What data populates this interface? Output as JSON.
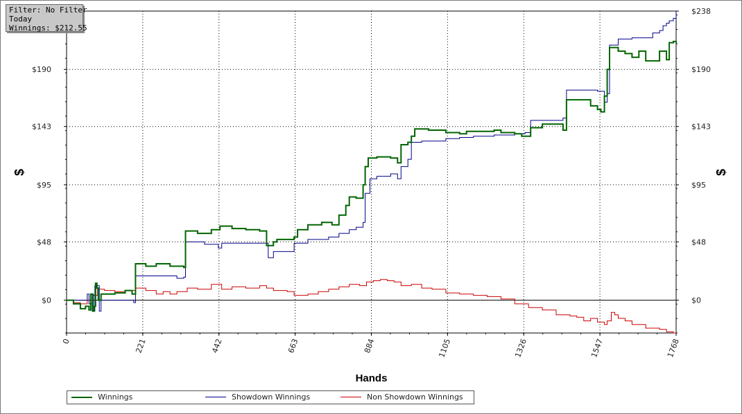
{
  "filter_box": {
    "line1": "Filter: No Filter",
    "line2": "Today",
    "line3": "Winnings: $212.55"
  },
  "chart_data": {
    "type": "line",
    "xlabel": "Hands",
    "ylabel": "$",
    "xlim": [
      0,
      1768
    ],
    "ylim": [
      -27,
      238
    ],
    "x_ticks": [
      "0",
      "221",
      "442",
      "663",
      "884",
      "1105",
      "1326",
      "1547",
      "1768"
    ],
    "y_ticks": [
      "$0",
      "$48",
      "$95",
      "$143",
      "$190",
      "$238"
    ],
    "y_tick_values": [
      0,
      48,
      95,
      143,
      190,
      238
    ],
    "grid": true,
    "legend_position": "bottom-left",
    "series": [
      {
        "name": "Winnings",
        "color": "#006400",
        "points": [
          [
            0,
            0
          ],
          [
            20,
            -3
          ],
          [
            40,
            -7
          ],
          [
            55,
            -5
          ],
          [
            65,
            -8
          ],
          [
            70,
            5
          ],
          [
            75,
            -9
          ],
          [
            80,
            -5
          ],
          [
            84,
            14
          ],
          [
            88,
            10
          ],
          [
            92,
            0
          ],
          [
            100,
            5
          ],
          [
            140,
            6
          ],
          [
            170,
            8
          ],
          [
            190,
            5
          ],
          [
            200,
            30
          ],
          [
            230,
            28
          ],
          [
            260,
            30
          ],
          [
            300,
            28
          ],
          [
            340,
            27
          ],
          [
            345,
            57
          ],
          [
            380,
            55
          ],
          [
            420,
            58
          ],
          [
            445,
            61
          ],
          [
            480,
            59
          ],
          [
            520,
            58
          ],
          [
            560,
            57
          ],
          [
            580,
            45
          ],
          [
            600,
            48
          ],
          [
            610,
            50
          ],
          [
            640,
            50
          ],
          [
            660,
            52
          ],
          [
            670,
            58
          ],
          [
            700,
            62
          ],
          [
            740,
            64
          ],
          [
            770,
            62
          ],
          [
            790,
            70
          ],
          [
            810,
            78
          ],
          [
            820,
            85
          ],
          [
            840,
            84
          ],
          [
            860,
            95
          ],
          [
            866,
            110
          ],
          [
            875,
            117
          ],
          [
            900,
            118
          ],
          [
            940,
            117
          ],
          [
            960,
            113
          ],
          [
            970,
            128
          ],
          [
            990,
            130
          ],
          [
            1000,
            135
          ],
          [
            1010,
            141
          ],
          [
            1050,
            140
          ],
          [
            1100,
            138
          ],
          [
            1140,
            137
          ],
          [
            1160,
            139
          ],
          [
            1200,
            139
          ],
          [
            1240,
            140
          ],
          [
            1260,
            138
          ],
          [
            1300,
            137
          ],
          [
            1320,
            135
          ],
          [
            1346,
            142
          ],
          [
            1380,
            145
          ],
          [
            1400,
            145
          ],
          [
            1440,
            140
          ],
          [
            1450,
            165
          ],
          [
            1480,
            165
          ],
          [
            1500,
            165
          ],
          [
            1520,
            160
          ],
          [
            1540,
            157
          ],
          [
            1550,
            155
          ],
          [
            1560,
            168
          ],
          [
            1568,
            190
          ],
          [
            1575,
            208
          ],
          [
            1600,
            205
          ],
          [
            1620,
            203
          ],
          [
            1640,
            200
          ],
          [
            1660,
            205
          ],
          [
            1680,
            197
          ],
          [
            1700,
            197
          ],
          [
            1720,
            205
          ],
          [
            1740,
            198
          ],
          [
            1748,
            212
          ],
          [
            1760,
            213
          ],
          [
            1768,
            212
          ]
        ]
      },
      {
        "name": "Showdown Winnings",
        "color": "#00008b",
        "points": [
          [
            0,
            0
          ],
          [
            55,
            0
          ],
          [
            60,
            5
          ],
          [
            65,
            -3
          ],
          [
            75,
            5
          ],
          [
            78,
            -9
          ],
          [
            82,
            12
          ],
          [
            88,
            12
          ],
          [
            95,
            -9
          ],
          [
            100,
            0
          ],
          [
            190,
            0
          ],
          [
            195,
            -2
          ],
          [
            200,
            20
          ],
          [
            320,
            18
          ],
          [
            340,
            19
          ],
          [
            345,
            48
          ],
          [
            400,
            46
          ],
          [
            440,
            43
          ],
          [
            450,
            47
          ],
          [
            520,
            47
          ],
          [
            580,
            47
          ],
          [
            585,
            35
          ],
          [
            600,
            40
          ],
          [
            640,
            40
          ],
          [
            660,
            47
          ],
          [
            700,
            50
          ],
          [
            760,
            52
          ],
          [
            790,
            55
          ],
          [
            820,
            58
          ],
          [
            840,
            60
          ],
          [
            860,
            64
          ],
          [
            866,
            88
          ],
          [
            880,
            100
          ],
          [
            900,
            102
          ],
          [
            940,
            104
          ],
          [
            960,
            100
          ],
          [
            970,
            110
          ],
          [
            990,
            116
          ],
          [
            1000,
            130
          ],
          [
            1030,
            131
          ],
          [
            1100,
            133
          ],
          [
            1140,
            134
          ],
          [
            1180,
            135
          ],
          [
            1240,
            136
          ],
          [
            1300,
            137
          ],
          [
            1330,
            138
          ],
          [
            1346,
            148
          ],
          [
            1400,
            148
          ],
          [
            1440,
            150
          ],
          [
            1450,
            173
          ],
          [
            1480,
            173
          ],
          [
            1540,
            172
          ],
          [
            1560,
            163
          ],
          [
            1568,
            170
          ],
          [
            1575,
            210
          ],
          [
            1600,
            215
          ],
          [
            1640,
            216
          ],
          [
            1700,
            220
          ],
          [
            1720,
            222
          ],
          [
            1730,
            226
          ],
          [
            1740,
            228
          ],
          [
            1748,
            230
          ],
          [
            1760,
            232
          ],
          [
            1768,
            238
          ]
        ]
      },
      {
        "name": "Non Showdown Winnings",
        "color": "#cc0000",
        "points": [
          [
            0,
            0
          ],
          [
            20,
            -2
          ],
          [
            40,
            -3
          ],
          [
            60,
            0
          ],
          [
            75,
            4
          ],
          [
            90,
            9
          ],
          [
            110,
            8
          ],
          [
            140,
            7
          ],
          [
            170,
            8
          ],
          [
            200,
            10
          ],
          [
            230,
            8
          ],
          [
            260,
            5
          ],
          [
            280,
            7
          ],
          [
            300,
            5
          ],
          [
            320,
            7
          ],
          [
            350,
            10
          ],
          [
            380,
            9
          ],
          [
            420,
            13
          ],
          [
            450,
            9
          ],
          [
            480,
            11
          ],
          [
            520,
            10
          ],
          [
            560,
            12
          ],
          [
            580,
            10
          ],
          [
            600,
            8
          ],
          [
            640,
            7
          ],
          [
            660,
            4
          ],
          [
            700,
            5
          ],
          [
            730,
            7
          ],
          [
            760,
            9
          ],
          [
            790,
            11
          ],
          [
            820,
            13
          ],
          [
            850,
            12
          ],
          [
            870,
            15
          ],
          [
            890,
            16
          ],
          [
            910,
            17
          ],
          [
            930,
            16
          ],
          [
            950,
            15
          ],
          [
            970,
            12
          ],
          [
            1000,
            13
          ],
          [
            1030,
            10
          ],
          [
            1060,
            9
          ],
          [
            1100,
            6
          ],
          [
            1140,
            5
          ],
          [
            1180,
            4
          ],
          [
            1220,
            3
          ],
          [
            1260,
            1
          ],
          [
            1300,
            -3
          ],
          [
            1320,
            -3
          ],
          [
            1340,
            -6
          ],
          [
            1360,
            -6
          ],
          [
            1380,
            -8
          ],
          [
            1400,
            -8
          ],
          [
            1420,
            -12
          ],
          [
            1440,
            -12
          ],
          [
            1460,
            -13
          ],
          [
            1480,
            -14
          ],
          [
            1500,
            -17
          ],
          [
            1520,
            -15
          ],
          [
            1540,
            -18
          ],
          [
            1560,
            -20
          ],
          [
            1568,
            -17
          ],
          [
            1580,
            -10
          ],
          [
            1590,
            -12
          ],
          [
            1600,
            -15
          ],
          [
            1620,
            -17
          ],
          [
            1640,
            -20
          ],
          [
            1660,
            -20
          ],
          [
            1680,
            -23
          ],
          [
            1700,
            -23
          ],
          [
            1720,
            -24
          ],
          [
            1740,
            -26
          ],
          [
            1760,
            -27
          ],
          [
            1768,
            -27
          ]
        ]
      }
    ]
  }
}
